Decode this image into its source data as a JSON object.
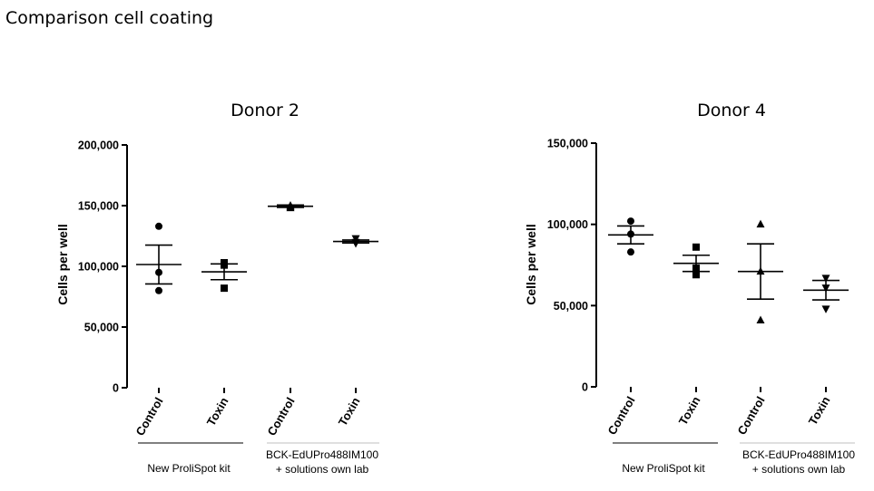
{
  "slide": {
    "title": "Comparison cell coating"
  },
  "chart_data": [
    {
      "type": "scatter",
      "title": "Donor 2",
      "ylabel": "Cells per well",
      "ylim": [
        0,
        200000
      ],
      "yticks": [
        0,
        50000,
        100000,
        150000,
        200000
      ],
      "ytick_labels": [
        "0",
        "50,000",
        "100,000",
        "150,000",
        "200,000"
      ],
      "categories": [
        "Control",
        "Toxin",
        "Control",
        "Toxin"
      ],
      "groups": [
        {
          "label": "New ProliSpot kit",
          "categories": [
            0,
            1
          ]
        },
        {
          "label": "BCK-EdUPro488IM100\n+ solutions own lab",
          "categories": [
            2,
            3
          ]
        }
      ],
      "series": [
        {
          "name": "Control",
          "marker": "circle",
          "points": [
            133000,
            95000,
            80000
          ],
          "mean": 101500,
          "sem": 16000
        },
        {
          "name": "Toxin",
          "marker": "square",
          "points": [
            103000,
            101000,
            82000
          ],
          "mean": 95500,
          "sem": 6500
        },
        {
          "name": "Control",
          "marker": "triangle-up",
          "points": [
            150000,
            149000,
            148000
          ],
          "mean": 149500,
          "sem": 1000
        },
        {
          "name": "Toxin",
          "marker": "triangle-down",
          "points": [
            123000,
            120000,
            119000
          ],
          "mean": 120500,
          "sem": 1200
        }
      ]
    },
    {
      "type": "scatter",
      "title": "Donor 4",
      "ylabel": "Cells per well",
      "ylim": [
        0,
        150000
      ],
      "yticks": [
        0,
        50000,
        100000,
        150000
      ],
      "ytick_labels": [
        "0",
        "50,000",
        "100,000",
        "150,000"
      ],
      "categories": [
        "Control",
        "Toxin",
        "Control",
        "Toxin"
      ],
      "groups": [
        {
          "label": "New ProliSpot kit",
          "categories": [
            0,
            1
          ]
        },
        {
          "label": "BCK-EdUPro488IM100\n+ solutions own lab",
          "categories": [
            2,
            3
          ]
        }
      ],
      "series": [
        {
          "name": "Control",
          "marker": "circle",
          "points": [
            102000,
            94000,
            83000
          ],
          "mean": 93500,
          "sem": 5500
        },
        {
          "name": "Toxin",
          "marker": "square",
          "points": [
            86000,
            73000,
            69000
          ],
          "mean": 76000,
          "sem": 5000
        },
        {
          "name": "Control",
          "marker": "triangle-up",
          "points": [
            100000,
            71000,
            41000
          ],
          "mean": 71000,
          "sem": 17000
        },
        {
          "name": "Toxin",
          "marker": "triangle-down",
          "points": [
            67000,
            61000,
            48000
          ],
          "mean": 59500,
          "sem": 6000
        }
      ]
    }
  ]
}
